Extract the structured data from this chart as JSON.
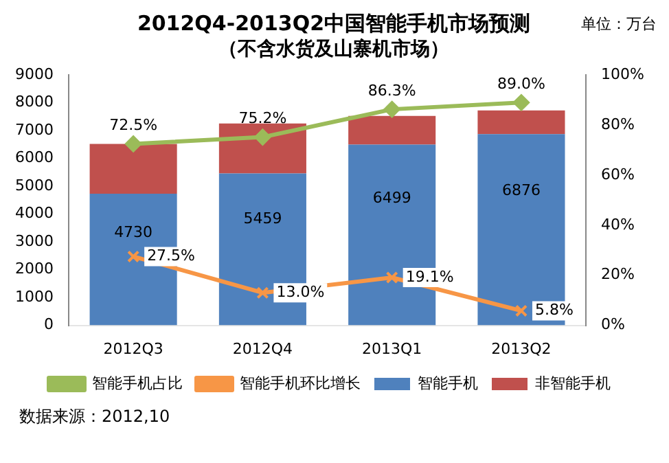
{
  "chart_data": {
    "type": "bar",
    "title": "2012Q4-2013Q2中国智能手机市场预测",
    "subtitle": "（不含水货及山寨机市场）",
    "stacked": true,
    "legend": "bottom",
    "categories": [
      "2012Q3",
      "2012Q4",
      "2013Q1",
      "2013Q2"
    ],
    "series": [
      {
        "name": "智能手机",
        "color": "#4f81bd",
        "values": [
          4730,
          5459,
          6499,
          6876
        ],
        "value_labels": [
          "4730",
          "5459",
          "6499",
          "6876"
        ]
      },
      {
        "name": "非智能手机",
        "color": "#c0504d",
        "values": [
          1790,
          1800,
          1030,
          850
        ]
      },
      {
        "name": "智能手机占比",
        "type": "line",
        "axis": "y2",
        "marker": "diamond",
        "color": "#9bbb59",
        "values": [
          72.5,
          75.2,
          86.3,
          89.0
        ],
        "value_labels": [
          "72.5%",
          "75.2%",
          "86.3%",
          "89.0%"
        ]
      },
      {
        "name": "智能手机环比增长",
        "type": "line",
        "axis": "y2",
        "marker": "cross",
        "color": "#f79646",
        "values": [
          27.5,
          13.0,
          19.1,
          5.8
        ],
        "value_labels": [
          "27.5%",
          "13.0%",
          "19.1%",
          "5.8%"
        ]
      }
    ],
    "ylim": [
      0,
      9000
    ],
    "yticks": [
      0,
      1000,
      2000,
      3000,
      4000,
      5000,
      6000,
      7000,
      8000,
      9000
    ],
    "y2lim": [
      0,
      100
    ],
    "y2ticks": [
      {
        "value": 0,
        "label": "0%"
      },
      {
        "value": 20,
        "label": "20%"
      },
      {
        "value": 40,
        "label": "40%"
      },
      {
        "value": 60,
        "label": "60%"
      },
      {
        "value": 80,
        "label": "80%"
      },
      {
        "value": 100,
        "label": "100%"
      }
    ],
    "annotations": [
      "单位：万台",
      "数据来源：2012,10"
    ]
  }
}
